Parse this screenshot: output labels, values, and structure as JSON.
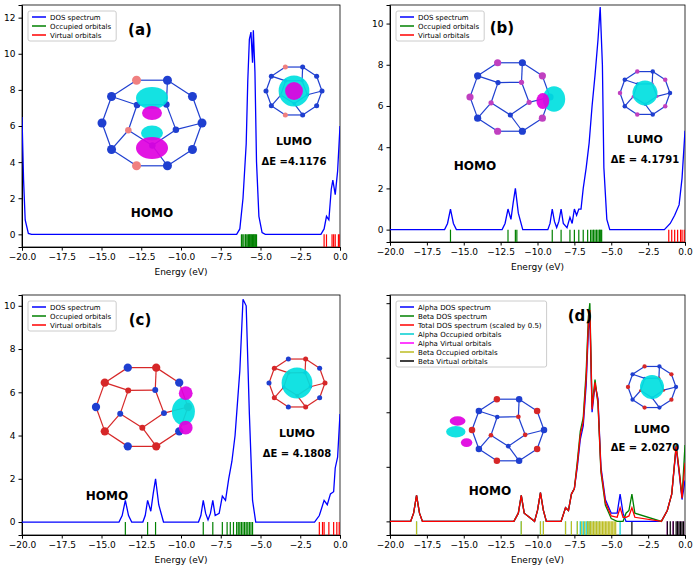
{
  "chart_data": [
    {
      "type": "line",
      "title": "(a)",
      "xlabel": "Energy (eV)",
      "xlim": [
        -20,
        0
      ],
      "xticks": [
        {
          "value": -20,
          "label": "−20.0"
        },
        {
          "value": -17.5,
          "label": "−17.5"
        },
        {
          "value": -15,
          "label": "−15.0"
        },
        {
          "value": -12.5,
          "label": "−12.5"
        },
        {
          "value": -10,
          "label": "−10.0"
        },
        {
          "value": -7.5,
          "label": "−7.5"
        },
        {
          "value": -5,
          "label": "−5.0"
        },
        {
          "value": -2.5,
          "label": "−2.5"
        },
        {
          "value": 0,
          "label": "0.0"
        }
      ],
      "ylim": [
        -0.7,
        12.7
      ],
      "yticks": [
        0,
        2,
        4,
        6,
        8,
        10,
        12
      ],
      "legend": "upper left",
      "series": [
        {
          "name": "DOS spectrum",
          "color": "#0000ff",
          "type": "line",
          "x": [
            -20,
            -19.9,
            -19.8,
            -19.6,
            -19.4,
            -7,
            -6.5,
            -6.3,
            -6.1,
            -5.9,
            -5.8,
            -5.7,
            -5.6,
            -5.5,
            -5.45,
            -5.35,
            -5.25,
            -5.1,
            -4.9,
            -4.7,
            -1.2,
            -1.0,
            -0.85,
            -0.7,
            -0.55,
            -0.45,
            -0.3,
            -0.15,
            0
          ],
          "values": [
            6.5,
            3.0,
            0.8,
            0.05,
            0,
            0,
            0,
            0.3,
            2.0,
            5.0,
            8.5,
            10.8,
            11.2,
            9.5,
            11.3,
            9.0,
            4.0,
            1.0,
            0.1,
            0,
            0,
            0.3,
            1.0,
            0.8,
            2.5,
            3.0,
            2.2,
            3.5,
            6.0
          ]
        },
        {
          "name": "Occupied orbitals",
          "color": "#008000",
          "type": "stick",
          "x": [
            -6.2,
            -6.15,
            -6.05,
            -5.95,
            -5.9,
            -5.8,
            -5.75,
            -5.7,
            -5.65,
            -5.6,
            -5.55,
            -5.5,
            -5.45,
            -5.4,
            -5.35,
            -5.3,
            -5.25
          ]
        },
        {
          "name": "Virtual orbitals",
          "color": "#ff0000",
          "type": "stick",
          "x": [
            -1.0,
            -0.85,
            -0.5,
            -0.4,
            -0.3,
            -0.1,
            -0.05
          ]
        }
      ],
      "annotations": [
        "HOMO",
        "LUMO",
        "ΔE =4.1176"
      ]
    },
    {
      "type": "line",
      "title": "(b)",
      "xlabel": "Energy (eV)",
      "xlim": [
        -20,
        0
      ],
      "xticks": [
        {
          "value": -20,
          "label": "−20.0"
        },
        {
          "value": -17.5,
          "label": "−17.5"
        },
        {
          "value": -15,
          "label": "−15.0"
        },
        {
          "value": -12.5,
          "label": "−12.5"
        },
        {
          "value": -10,
          "label": "−10.0"
        },
        {
          "value": -7.5,
          "label": "−7.5"
        },
        {
          "value": -5,
          "label": "−5.0"
        },
        {
          "value": -2.5,
          "label": "−2.5"
        },
        {
          "value": 0,
          "label": "0.0"
        }
      ],
      "ylim": [
        -0.6,
        10.9
      ],
      "yticks": [
        0,
        2,
        4,
        6,
        8,
        10
      ],
      "legend": "upper left",
      "series": [
        {
          "name": "DOS spectrum",
          "color": "#0000ff",
          "type": "line",
          "x": [
            -20,
            -16.3,
            -16.1,
            -15.9,
            -15.7,
            -15.5,
            -12.4,
            -12.2,
            -12.0,
            -11.8,
            -11.65,
            -11.5,
            -11.3,
            -11.0,
            -9.3,
            -9.15,
            -9.0,
            -8.85,
            -8.7,
            -8.55,
            -8.4,
            -8.25,
            -8.0,
            -7.8,
            -7.65,
            -7.5,
            -7.35,
            -7.2,
            -7.05,
            -6.9,
            -6.7,
            -6.5,
            -6.3,
            -6.1,
            -5.9,
            -5.75,
            -5.6,
            -5.5,
            -5.3,
            -5.1,
            -1.4,
            -1.0,
            -0.7,
            -0.4,
            -0.2,
            0
          ],
          "values": [
            0,
            0,
            0.3,
            1.0,
            0.3,
            0,
            0,
            0.3,
            1.0,
            0.5,
            1.3,
            2.0,
            0.8,
            0,
            0,
            0.3,
            1.0,
            0.4,
            0.1,
            0.4,
            1.0,
            0.3,
            0.1,
            0.6,
            0.3,
            1.0,
            0.7,
            1.0,
            1.0,
            2.0,
            3.0,
            4.2,
            6.0,
            7.5,
            9.2,
            10.8,
            8.0,
            3.0,
            0.5,
            0,
            0,
            0.3,
            0.7,
            1.2,
            2.5,
            4.8
          ]
        },
        {
          "name": "Occupied orbitals",
          "color": "#008000",
          "type": "stick",
          "x": [
            -15.9,
            -12.0,
            -11.5,
            -11.4,
            -9.0,
            -8.4,
            -7.8,
            -7.5,
            -7.2,
            -6.9,
            -6.6,
            -6.4,
            -6.3,
            -6.2,
            -6.1,
            -6.0,
            -5.9,
            -5.8,
            -5.75,
            -5.7,
            -5.65
          ]
        },
        {
          "name": "Virtual orbitals",
          "color": "#ff0000",
          "type": "stick",
          "x": [
            -1.1,
            -0.9,
            -0.7,
            -0.5,
            -0.3,
            -0.2,
            -0.05
          ]
        }
      ],
      "annotations": [
        "HOMO",
        "LUMO",
        "ΔE = 4.1791"
      ]
    },
    {
      "type": "line",
      "title": "(c)",
      "xlabel": "Energy (eV)",
      "xlim": [
        -20,
        0
      ],
      "xticks": [
        {
          "value": -20,
          "label": "−20.0"
        },
        {
          "value": -17.5,
          "label": "−17.5"
        },
        {
          "value": -15,
          "label": "−15.0"
        },
        {
          "value": -12.5,
          "label": "−12.5"
        },
        {
          "value": -10,
          "label": "−10.0"
        },
        {
          "value": -7.5,
          "label": "−7.5"
        },
        {
          "value": -5,
          "label": "−5.0"
        },
        {
          "value": -2.5,
          "label": "−2.5"
        },
        {
          "value": 0,
          "label": "0.0"
        }
      ],
      "ylim": [
        -0.6,
        10.5
      ],
      "yticks": [
        0,
        2,
        4,
        6,
        8,
        10
      ],
      "legend": "upper left",
      "series": [
        {
          "name": "DOS spectrum",
          "color": "#0000ff",
          "type": "line",
          "x": [
            -20,
            -13.9,
            -13.7,
            -13.5,
            -13.3,
            -13.1,
            -12.4,
            -12.25,
            -12.1,
            -11.9,
            -11.75,
            -11.6,
            -11.4,
            -11.1,
            -8.9,
            -8.75,
            -8.6,
            -8.45,
            -8.3,
            -8.15,
            -8.0,
            -7.85,
            -7.6,
            -7.4,
            -7.2,
            -7.0,
            -6.8,
            -6.6,
            -6.45,
            -6.3,
            -6.1,
            -5.9,
            -5.7,
            -5.5,
            -5.3,
            -1.6,
            -1.3,
            -1.0,
            -0.8,
            -0.6,
            -0.4,
            -0.3,
            -0.15,
            0
          ],
          "values": [
            0,
            0,
            0.3,
            1.0,
            0.3,
            0,
            0,
            0.3,
            1.0,
            0.5,
            1.3,
            2.0,
            0.8,
            0,
            0,
            0.3,
            1.0,
            0.4,
            0.1,
            0.4,
            1.0,
            0.3,
            0.4,
            1.2,
            1.0,
            2.0,
            2.8,
            4.0,
            5.5,
            7.0,
            10.3,
            10.0,
            5.0,
            1.0,
            0,
            0,
            0.3,
            1.0,
            0.8,
            1.3,
            1.4,
            2.5,
            3.0,
            5.0
          ]
        },
        {
          "name": "Occupied orbitals",
          "color": "#008000",
          "type": "stick",
          "x": [
            -13.5,
            -12.1,
            -11.6,
            -8.6,
            -8.0,
            -7.4,
            -7.1,
            -6.9,
            -6.7,
            -6.5,
            -6.4,
            -6.3,
            -6.2,
            -6.1,
            -6.0,
            -5.9,
            -5.8,
            -5.7,
            -5.6,
            -5.5
          ]
        },
        {
          "name": "Virtual orbitals",
          "color": "#ff0000",
          "type": "stick",
          "x": [
            -1.3,
            -1.1,
            -1.0,
            -0.7,
            -0.4,
            -0.2,
            -0.05
          ]
        }
      ],
      "annotations": [
        "HOMO",
        "LUMO",
        "ΔE = 4.1808"
      ]
    },
    {
      "type": "line",
      "title": "(d)",
      "xlabel": "Energy (eV)",
      "xlim": [
        -20,
        0
      ],
      "xticks": [
        {
          "value": -20,
          "label": "−20.0"
        },
        {
          "value": -17.5,
          "label": "−17.5"
        },
        {
          "value": -15,
          "label": "−15.0"
        },
        {
          "value": -12.5,
          "label": "−12.5"
        },
        {
          "value": -10,
          "label": "−10.0"
        },
        {
          "value": -7.5,
          "label": "−7.5"
        },
        {
          "value": -5,
          "label": "−5.0"
        },
        {
          "value": -2.5,
          "label": "−2.5"
        },
        {
          "value": 0,
          "label": "0.0"
        }
      ],
      "ylim": [
        -0.5,
        8.3
      ],
      "yticks": [
        0,
        2,
        4,
        6,
        8
      ],
      "tick_labels": "x",
      "legend": "upper left",
      "series": [
        {
          "name": "Alpha DOS spectrum",
          "color": "#0000ff",
          "type": "line",
          "x": [
            -20,
            -18.6,
            -18.4,
            -18.2,
            -18.0,
            -17.8,
            -11.6,
            -11.3,
            -11.1,
            -10.9,
            -10.2,
            -10.0,
            -9.8,
            -9.6,
            -9.4,
            -8.4,
            -8.1,
            -7.9,
            -7.7,
            -7.5,
            -7.3,
            -7.1,
            -6.9,
            -6.7,
            -6.55,
            -6.45,
            -6.3,
            -6.1,
            -5.9,
            -5.7,
            -5.4,
            -5.0,
            -4.6,
            -4.4,
            -4.2,
            -4.0,
            -3.8,
            -3.6,
            -3.4,
            -1.6,
            -1.2,
            -0.9,
            -0.6,
            -0.4,
            -0.2,
            0
          ],
          "values": [
            0,
            0,
            0.3,
            0.95,
            0.3,
            0,
            0,
            0.3,
            0.95,
            0.3,
            0,
            0.4,
            1.05,
            0.4,
            0,
            0,
            0.5,
            0.4,
            1.0,
            1.2,
            2.0,
            3.0,
            3.5,
            5.0,
            7.0,
            7.5,
            4.0,
            5.0,
            4.5,
            2.0,
            0.8,
            0.3,
            0.3,
            1.0,
            0.3,
            0,
            0,
            0,
            0,
            0,
            0.4,
            1.0,
            2.7,
            1.8,
            0.8,
            1.5
          ]
        },
        {
          "name": "Beta DOS spectrum",
          "color": "#008000",
          "type": "line",
          "x": [
            -20,
            -18.6,
            -18.4,
            -18.2,
            -18.0,
            -17.8,
            -11.6,
            -11.3,
            -11.1,
            -10.9,
            -10.2,
            -10.0,
            -9.8,
            -9.6,
            -9.4,
            -8.4,
            -8.1,
            -7.9,
            -7.7,
            -7.5,
            -7.3,
            -7.1,
            -6.9,
            -6.7,
            -6.55,
            -6.45,
            -6.3,
            -6.1,
            -5.9,
            -5.7,
            -5.4,
            -5.0,
            -4.6,
            -4.4,
            -4.2,
            -4.0,
            -3.8,
            -3.6,
            -3.4,
            -1.6,
            -1.2,
            -0.9,
            -0.6,
            -0.4,
            -0.2,
            0
          ],
          "values": [
            0,
            0,
            0.3,
            0.95,
            0.3,
            0,
            0,
            0.3,
            0.95,
            0.3,
            0,
            0.4,
            1.05,
            0.4,
            0,
            0,
            0.5,
            0.4,
            1.0,
            1.2,
            2.2,
            3.3,
            3.8,
            5.5,
            7.5,
            8.0,
            4.2,
            5.2,
            4.3,
            1.8,
            0.6,
            0.1,
            0,
            0,
            0,
            0.3,
            0.4,
            1.0,
            0.3,
            0,
            0.4,
            1.0,
            2.8,
            1.9,
            0.9,
            2.8
          ]
        },
        {
          "name": "Total DOS spectrum (scaled by 0.5)",
          "color": "#ff0000",
          "type": "line",
          "x": [
            -20,
            -18.6,
            -18.4,
            -18.2,
            -18.0,
            -17.8,
            -11.6,
            -11.3,
            -11.1,
            -10.9,
            -10.2,
            -10.0,
            -9.8,
            -9.6,
            -9.4,
            -8.4,
            -8.1,
            -7.9,
            -7.7,
            -7.5,
            -7.3,
            -7.1,
            -6.9,
            -6.7,
            -6.55,
            -6.45,
            -6.3,
            -6.1,
            -5.9,
            -5.7,
            -5.4,
            -5.0,
            -4.6,
            -4.4,
            -4.2,
            -4.0,
            -3.8,
            -3.6,
            -3.4,
            -1.6,
            -1.2,
            -0.9,
            -0.6,
            -0.4,
            -0.2,
            0
          ],
          "values": [
            0,
            0,
            0.3,
            0.95,
            0.3,
            0,
            0,
            0.3,
            0.95,
            0.3,
            0,
            0.4,
            1.05,
            0.4,
            0,
            0,
            0.5,
            0.4,
            1.0,
            1.2,
            2.1,
            3.15,
            3.65,
            5.25,
            7.25,
            7.75,
            4.1,
            5.1,
            4.4,
            1.9,
            0.7,
            0.2,
            0.15,
            0.5,
            0.15,
            0.15,
            0.2,
            0.5,
            0.15,
            0,
            0.4,
            1.0,
            2.75,
            1.85,
            0.85,
            2.15
          ]
        },
        {
          "name": "Alpha Occupied orbitals",
          "color": "#00ced1",
          "type": "stick",
          "x": [
            -18.2,
            -11.1,
            -9.8,
            -9.6,
            -8.1,
            -7.7,
            -7.3,
            -7.1,
            -6.9,
            -6.7,
            -6.6,
            -6.5,
            -6.4,
            -6.2,
            -6.0,
            -5.8,
            -4.4
          ]
        },
        {
          "name": "Alpha Virtual orbitals",
          "color": "#ff00ff",
          "type": "stick",
          "x": [
            -1.2,
            -0.8,
            -0.5,
            -0.3,
            -0.1
          ]
        },
        {
          "name": "Beta Occupied orbitals",
          "color": "#bcbd22",
          "type": "stick",
          "x": [
            -18.2,
            -11.1,
            -9.8,
            -9.6,
            -8.1,
            -7.7,
            -7.3,
            -7.0,
            -6.8,
            -6.6,
            -6.5,
            -6.4,
            -6.3,
            -6.2,
            -6.1,
            -6.0,
            -5.9,
            -5.8,
            -5.7,
            -5.6,
            -5.5,
            -5.4,
            -5.3,
            -5.2,
            -5.1,
            -5.0,
            -4.9,
            -4.8,
            -4.7
          ]
        },
        {
          "name": "Beta Virtual orbitals",
          "color": "#000000",
          "type": "stick",
          "x": [
            -3.6,
            -1.2,
            -1.0,
            -0.8,
            -0.6,
            -0.5,
            -0.4,
            -0.3,
            -0.2,
            -0.1
          ]
        }
      ],
      "annotations": [
        "HOMO",
        "LUMO",
        "ΔE = 2.0270"
      ]
    }
  ]
}
